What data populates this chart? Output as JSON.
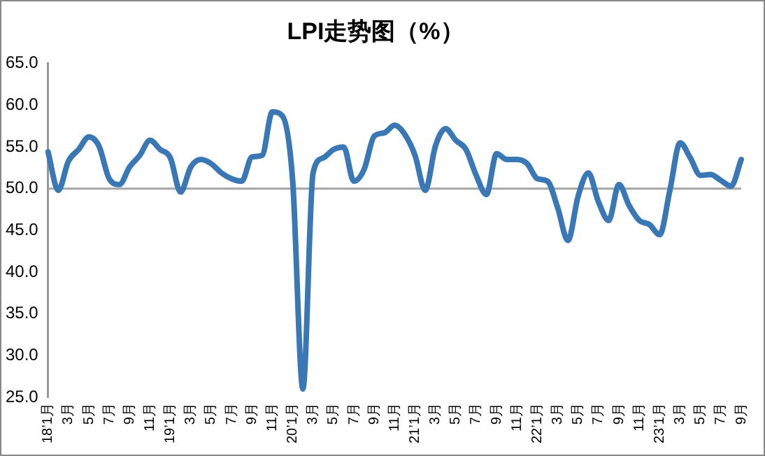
{
  "chart_data": {
    "type": "line",
    "title": "LPI走势图（%）",
    "categories": [
      "18’1月",
      null,
      "3月",
      null,
      "5月",
      null,
      "7月",
      null,
      "9月",
      null,
      "11月",
      null,
      "19’1月",
      null,
      "3月",
      null,
      "5月",
      null,
      "7月",
      null,
      "9月",
      null,
      "11月",
      null,
      "20’1月",
      null,
      "3月",
      null,
      "5月",
      null,
      "7月",
      null,
      "9月",
      null,
      "11月",
      null,
      "21’1月",
      null,
      "3月",
      null,
      "5月",
      null,
      "7月",
      null,
      "9月",
      null,
      "11月",
      null,
      "22’1月",
      null,
      "3月",
      null,
      "5月",
      null,
      "7月",
      null,
      "9月",
      null,
      "11月",
      null,
      "23’1月",
      null,
      "3月",
      null,
      "5月",
      null,
      "7月",
      null,
      "9月"
    ],
    "series": [
      {
        "color": "#3a78b5",
        "values": [
          54.4,
          49.8,
          53.3,
          54.7,
          56.2,
          55.1,
          51.2,
          50.5,
          52.6,
          54.0,
          55.8,
          54.7,
          53.7,
          49.6,
          52.6,
          53.5,
          53.0,
          51.9,
          51.2,
          50.9,
          53.8,
          54.0,
          59.2,
          58.7,
          50.9,
          26.0,
          51.9,
          53.7,
          54.7,
          55.0,
          50.9,
          52.3,
          56.3,
          56.7,
          57.6,
          56.5,
          54.0,
          49.8,
          55.1,
          57.2,
          55.8,
          54.7,
          51.6,
          49.3,
          54.2,
          53.5,
          53.5,
          53.0,
          51.2,
          50.9,
          47.7,
          43.8,
          49.1,
          51.9,
          48.4,
          46.2,
          50.5,
          48.0,
          46.2,
          45.7,
          44.5,
          49.8,
          55.5,
          53.7,
          51.6,
          51.7,
          51.0,
          50.3,
          53.5
        ]
      }
    ],
    "ylim": [
      25,
      65
    ],
    "yticks": [
      {
        "value": 25,
        "label": "25.0"
      },
      {
        "value": 30,
        "label": "30.0"
      },
      {
        "value": 35,
        "label": "35.0"
      },
      {
        "value": 40,
        "label": "40.0"
      },
      {
        "value": 45,
        "label": "45.0"
      },
      {
        "value": 50,
        "label": "50.0"
      },
      {
        "value": 55,
        "label": "55.0"
      },
      {
        "value": 60,
        "label": "60.0"
      },
      {
        "value": 65,
        "label": "65.0"
      }
    ],
    "ref_lines": [
      {
        "axis": "y",
        "value": 50,
        "color": "#a6a6a6"
      }
    ],
    "grid": false,
    "legend": false,
    "marker": "none",
    "line_style": "solid"
  }
}
